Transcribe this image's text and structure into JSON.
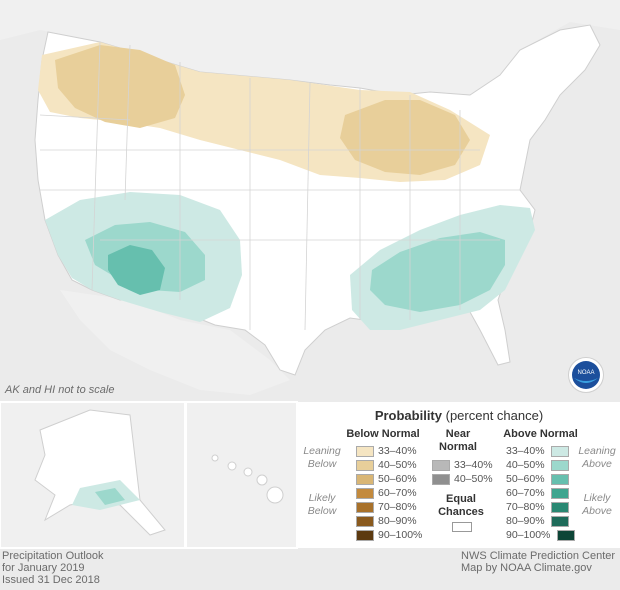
{
  "map": {
    "scale_note": "AK and HI not to scale",
    "noaa_logo_text": "NOAA"
  },
  "colors": {
    "background": "#ebebeb",
    "land": "#ffffff",
    "below_33_40": "#f5e5c2",
    "below_40_50": "#e8cf9a",
    "below_50_60": "#d9b675",
    "above_33_40": "#cde9e4",
    "above_40_50": "#9cd8cc",
    "above_50_60": "#66bfae",
    "above_60_70": "#3fa58f",
    "above_70_80": "#2a8873",
    "above_80_90": "#1e6b5a",
    "above_90_100": "#0d4537",
    "near_33_40": "#b8b8b8",
    "near_40_50": "#8f8f8f",
    "below_60_70": "#c38a3d",
    "below_70_80": "#a8712a",
    "below_80_90": "#8a5a1e",
    "below_90_100": "#5c3a10"
  },
  "legend": {
    "title_bold": "Probability",
    "title_rest": " (percent chance)",
    "below_normal": "Below Normal",
    "near_normal_1": "Near",
    "near_normal_2": "Normal",
    "above_normal": "Above Normal",
    "leaning_below_1": "Leaning",
    "leaning_below_2": "Below",
    "likely_below_1": "Likely",
    "likely_below_2": "Below",
    "leaning_above_1": "Leaning",
    "leaning_above_2": "Above",
    "likely_above_1": "Likely",
    "likely_above_2": "Above",
    "equal_1": "Equal",
    "equal_2": "Chances",
    "below_ranges": [
      "33–40%",
      "40–50%",
      "50–60%",
      "60–70%",
      "70–80%",
      "80–90%",
      "90–100%"
    ],
    "near_ranges": [
      "33–40%",
      "40–50%"
    ],
    "above_ranges": [
      "33–40%",
      "40–50%",
      "50–60%",
      "60–70%",
      "70–80%",
      "80–90%",
      "90–100%"
    ]
  },
  "footer": {
    "left_1": "Precipitation Outlook",
    "left_2": "for January 2019",
    "left_3": "Issued 31 Dec 2018",
    "right_1": "NWS Climate Prediction Center",
    "right_2": "Map by NOAA Climate.gov"
  }
}
